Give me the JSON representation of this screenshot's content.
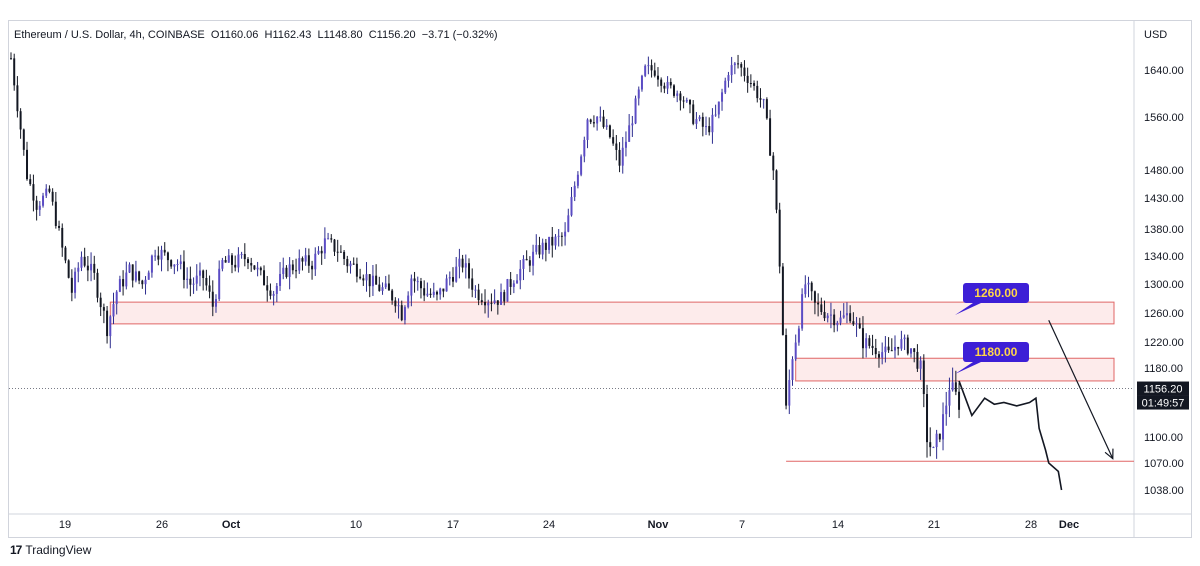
{
  "legend": {
    "symbol": "Ethereum / U.S. Dollar, 4h, COINBASE",
    "open": "O1160.06",
    "high": "H1162.43",
    "low": "L1148.80",
    "close": "C1156.20",
    "change": "−3.71 (−0.32%)"
  },
  "footer": {
    "brand": "TradingView"
  },
  "chart_data": {
    "type": "candlestick",
    "symbol": "Ethereum / U.S. Dollar",
    "timeframe": "4h",
    "exchange": "COINBASE",
    "currency_label": "USD",
    "y_ticks": [
      "1640.00",
      "1560.00",
      "1480.00",
      "1430.00",
      "1380.00",
      "1340.00",
      "1300.00",
      "1260.00",
      "1220.00",
      "1180.00",
      "1100.00",
      "1070.00",
      "1038.00"
    ],
    "x_ticks": [
      {
        "label": "19",
        "bold": false
      },
      {
        "label": "26",
        "bold": false
      },
      {
        "label": "Oct",
        "bold": true
      },
      {
        "label": "10",
        "bold": false
      },
      {
        "label": "17",
        "bold": false
      },
      {
        "label": "24",
        "bold": false
      },
      {
        "label": "Nov",
        "bold": true
      },
      {
        "label": "7",
        "bold": false
      },
      {
        "label": "14",
        "bold": false
      },
      {
        "label": "21",
        "bold": false
      },
      {
        "label": "28",
        "bold": false
      },
      {
        "label": "Dec",
        "bold": true
      }
    ],
    "last_price": {
      "value": 1156.2,
      "label": "1156.20",
      "countdown": "01:49:57"
    },
    "price_path": [
      [
        0,
        1660
      ],
      [
        2,
        1580
      ],
      [
        5,
        1470
      ],
      [
        8,
        1420
      ],
      [
        12,
        1440
      ],
      [
        16,
        1350
      ],
      [
        19,
        1290
      ],
      [
        22,
        1340
      ],
      [
        26,
        1310
      ],
      [
        30,
        1240
      ],
      [
        33,
        1290
      ],
      [
        37,
        1320
      ],
      [
        41,
        1300
      ],
      [
        45,
        1350
      ],
      [
        48,
        1340
      ],
      [
        52,
        1330
      ],
      [
        56,
        1300
      ],
      [
        60,
        1310
      ],
      [
        63,
        1270
      ],
      [
        66,
        1330
      ],
      [
        70,
        1330
      ],
      [
        74,
        1340
      ],
      [
        78,
        1310
      ],
      [
        82,
        1290
      ],
      [
        86,
        1320
      ],
      [
        90,
        1330
      ],
      [
        94,
        1330
      ],
      [
        98,
        1360
      ],
      [
        102,
        1350
      ],
      [
        105,
        1330
      ],
      [
        109,
        1320
      ],
      [
        113,
        1300
      ],
      [
        117,
        1290
      ],
      [
        120,
        1280
      ],
      [
        122,
        1260
      ],
      [
        125,
        1310
      ],
      [
        129,
        1290
      ],
      [
        133,
        1280
      ],
      [
        137,
        1310
      ],
      [
        141,
        1330
      ],
      [
        145,
        1290
      ],
      [
        149,
        1280
      ],
      [
        153,
        1280
      ],
      [
        157,
        1310
      ],
      [
        161,
        1330
      ],
      [
        165,
        1350
      ],
      [
        169,
        1360
      ],
      [
        173,
        1370
      ],
      [
        177,
        1480
      ],
      [
        180,
        1560
      ],
      [
        183,
        1560
      ],
      [
        187,
        1530
      ],
      [
        190,
        1490
      ],
      [
        194,
        1560
      ],
      [
        198,
        1640
      ],
      [
        201,
        1640
      ],
      [
        205,
        1610
      ],
      [
        209,
        1600
      ],
      [
        213,
        1560
      ],
      [
        217,
        1540
      ],
      [
        220,
        1560
      ],
      [
        224,
        1640
      ],
      [
        227,
        1650
      ],
      [
        231,
        1620
      ],
      [
        235,
        1580
      ],
      [
        238,
        1480
      ],
      [
        240,
        1330
      ],
      [
        242,
        1130
      ],
      [
        244,
        1200
      ],
      [
        248,
        1300
      ],
      [
        251,
        1270
      ],
      [
        255,
        1260
      ],
      [
        259,
        1250
      ],
      [
        262,
        1260
      ],
      [
        266,
        1220
      ],
      [
        270,
        1210
      ],
      [
        274,
        1200
      ],
      [
        277,
        1220
      ],
      [
        281,
        1210
      ],
      [
        284,
        1180
      ],
      [
        286,
        1100
      ],
      [
        288,
        1080
      ],
      [
        291,
        1120
      ],
      [
        293,
        1160
      ],
      [
        296,
        1140
      ]
    ],
    "projection_path": [
      [
        296,
        1165
      ],
      [
        300,
        1125
      ],
      [
        304,
        1145
      ],
      [
        307,
        1138
      ],
      [
        310,
        1140
      ],
      [
        314,
        1136
      ],
      [
        318,
        1140
      ],
      [
        320,
        1145
      ],
      [
        321,
        1110
      ],
      [
        323,
        1085
      ],
      [
        324,
        1070
      ],
      [
        327,
        1060
      ],
      [
        328,
        1038
      ]
    ],
    "zones": [
      {
        "label": "1260.00",
        "y_low": 1245,
        "y_high": 1275,
        "x_start": 31,
        "x_end": 350
      },
      {
        "label": "1180.00",
        "y_low": 1165,
        "y_high": 1195,
        "x_start": 245,
        "x_end": 350
      }
    ],
    "support_line": {
      "y": 1072,
      "x_start": 242,
      "x_end": 350
    },
    "arrow": {
      "from": [
        324,
        1250
      ],
      "to": [
        344,
        1075
      ]
    },
    "x_range": [
      0,
      350
    ],
    "grid": false,
    "legend_position": "top-left"
  }
}
